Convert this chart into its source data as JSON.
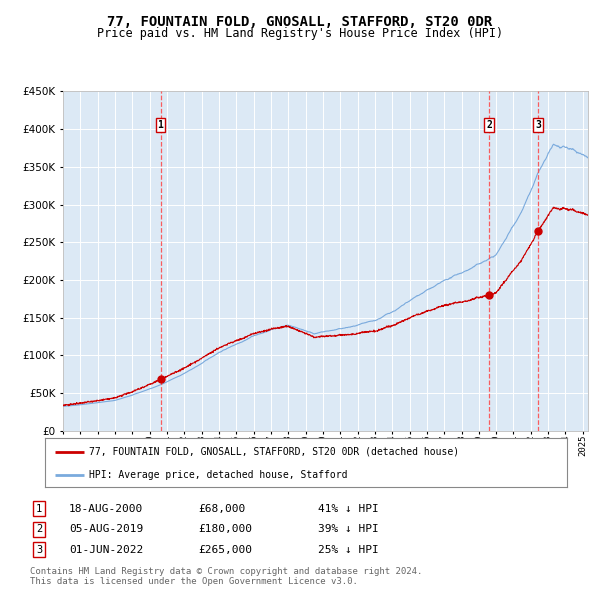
{
  "title": "77, FOUNTAIN FOLD, GNOSALL, STAFFORD, ST20 0DR",
  "subtitle": "Price paid vs. HM Land Registry's House Price Index (HPI)",
  "title_fontsize": 10,
  "subtitle_fontsize": 8.5,
  "plot_bg_color": "#dce9f5",
  "fig_bg_color": "#ffffff",
  "ylim": [
    0,
    450000
  ],
  "yticks": [
    0,
    50000,
    100000,
    150000,
    200000,
    250000,
    300000,
    350000,
    400000,
    450000
  ],
  "hpi_color": "#7aaadd",
  "sale_color": "#cc0000",
  "sale_dot_color": "#cc0000",
  "vline_color": "#ff4444",
  "grid_color": "#ffffff",
  "sale_points": [
    {
      "date_num": 2000.63,
      "price": 68000,
      "label": "1",
      "date_str": "18-AUG-2000",
      "pct": "41%"
    },
    {
      "date_num": 2019.59,
      "price": 180000,
      "label": "2",
      "date_str": "05-AUG-2019",
      "pct": "39%"
    },
    {
      "date_num": 2022.42,
      "price": 265000,
      "label": "3",
      "date_str": "01-JUN-2022",
      "pct": "25%"
    }
  ],
  "legend_sale_label": "77, FOUNTAIN FOLD, GNOSALL, STAFFORD, ST20 0DR (detached house)",
  "legend_hpi_label": "HPI: Average price, detached house, Stafford",
  "footer1": "Contains HM Land Registry data © Crown copyright and database right 2024.",
  "footer2": "This data is licensed under the Open Government Licence v3.0.",
  "table_rows": [
    {
      "num": "1",
      "date": "18-AUG-2000",
      "price": "£68,000",
      "pct": "41% ↓ HPI"
    },
    {
      "num": "2",
      "date": "05-AUG-2019",
      "price": "£180,000",
      "pct": "39% ↓ HPI"
    },
    {
      "num": "3",
      "date": "01-JUN-2022",
      "price": "£265,000",
      "pct": "25% ↓ HPI"
    }
  ]
}
